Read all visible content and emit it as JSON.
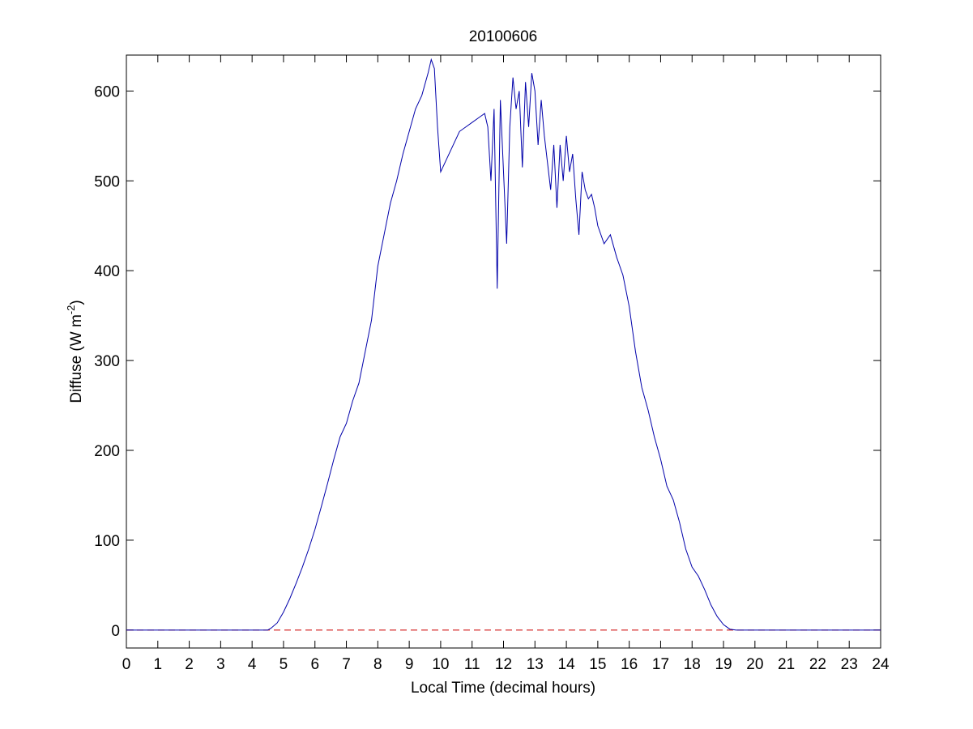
{
  "chart_data": {
    "type": "line",
    "title": "20100606",
    "xlabel": "Local Time (decimal hours)",
    "ylabel": {
      "text": "Diffuse (W m",
      "superscript": "-2",
      "suffix": ")"
    },
    "xlim": [
      0,
      24
    ],
    "ylim": [
      -20,
      640
    ],
    "xticks": [
      0,
      1,
      2,
      3,
      4,
      5,
      6,
      7,
      8,
      9,
      10,
      11,
      12,
      13,
      14,
      15,
      16,
      17,
      18,
      19,
      20,
      21,
      22,
      23,
      24
    ],
    "yticks": [
      0,
      100,
      200,
      300,
      400,
      500,
      600
    ],
    "grid": false,
    "reference_line": {
      "value": 0,
      "color": "#cc0000",
      "dashed": true
    },
    "series": [
      {
        "color": "#0000aa",
        "x": [
          0,
          1,
          2,
          3,
          4,
          4.5,
          4.6,
          4.8,
          5.0,
          5.2,
          5.4,
          5.6,
          5.8,
          6.0,
          6.2,
          6.4,
          6.6,
          6.8,
          7.0,
          7.2,
          7.4,
          7.6,
          7.8,
          8.0,
          8.2,
          8.4,
          8.6,
          8.8,
          9.0,
          9.2,
          9.4,
          9.6,
          9.7,
          9.8,
          9.9,
          10.0,
          10.2,
          10.4,
          10.6,
          10.8,
          11.0,
          11.2,
          11.4,
          11.5,
          11.6,
          11.7,
          11.8,
          11.9,
          12.0,
          12.1,
          12.2,
          12.3,
          12.4,
          12.5,
          12.6,
          12.7,
          12.8,
          12.9,
          13.0,
          13.1,
          13.2,
          13.3,
          13.4,
          13.5,
          13.6,
          13.7,
          13.8,
          13.9,
          14.0,
          14.1,
          14.2,
          14.3,
          14.4,
          14.5,
          14.6,
          14.7,
          14.8,
          14.9,
          15.0,
          15.2,
          15.4,
          15.6,
          15.8,
          16.0,
          16.2,
          16.4,
          16.6,
          16.8,
          17.0,
          17.2,
          17.4,
          17.6,
          17.8,
          18.0,
          18.2,
          18.4,
          18.6,
          18.8,
          19.0,
          19.2,
          19.4,
          20,
          21,
          22,
          23,
          24
        ],
        "values": [
          0,
          0,
          0,
          0,
          0,
          0,
          2,
          8,
          20,
          35,
          52,
          70,
          90,
          112,
          137,
          163,
          190,
          215,
          230,
          255,
          275,
          310,
          345,
          405,
          440,
          475,
          500,
          530,
          555,
          580,
          595,
          620,
          635,
          625,
          560,
          510,
          525,
          540,
          555,
          560,
          565,
          570,
          575,
          560,
          500,
          580,
          380,
          590,
          510,
          430,
          560,
          615,
          580,
          600,
          515,
          610,
          560,
          620,
          600,
          540,
          590,
          550,
          520,
          490,
          540,
          470,
          540,
          500,
          550,
          510,
          530,
          480,
          440,
          510,
          490,
          480,
          485,
          470,
          450,
          430,
          440,
          415,
          395,
          360,
          310,
          270,
          245,
          215,
          190,
          160,
          145,
          120,
          90,
          70,
          60,
          45,
          28,
          15,
          6,
          1,
          0,
          0,
          0,
          0,
          0,
          0
        ]
      }
    ]
  }
}
